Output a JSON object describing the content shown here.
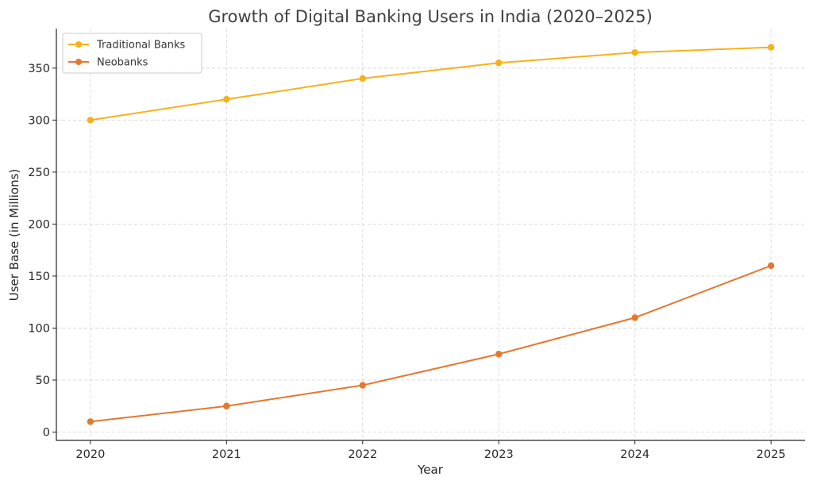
{
  "chart_data": {
    "type": "line",
    "title": "Growth of Digital Banking Users in India (2020–2025)",
    "xlabel": "Year",
    "ylabel": "User Base (in Millions)",
    "x": [
      2020,
      2021,
      2022,
      2023,
      2024,
      2025
    ],
    "x_tick_labels": [
      "2020",
      "2021",
      "2022",
      "2023",
      "2024",
      "2025"
    ],
    "y_ticks": [
      0,
      50,
      100,
      150,
      200,
      250,
      300,
      350
    ],
    "y_tick_labels": [
      "0",
      "50",
      "100",
      "150",
      "200",
      "250",
      "300",
      "350"
    ],
    "xlim": [
      2019.75,
      2025.25
    ],
    "ylim": [
      -8,
      388
    ],
    "grid": true,
    "legend_position": "top-left",
    "series": [
      {
        "name": "Traditional Banks",
        "values": [
          300,
          320,
          340,
          355,
          365,
          370
        ],
        "color": "#F5B21A",
        "marker": "circle"
      },
      {
        "name": "Neobanks",
        "values": [
          10,
          25,
          45,
          75,
          110,
          160
        ],
        "color": "#E5772F",
        "marker": "circle"
      }
    ]
  }
}
